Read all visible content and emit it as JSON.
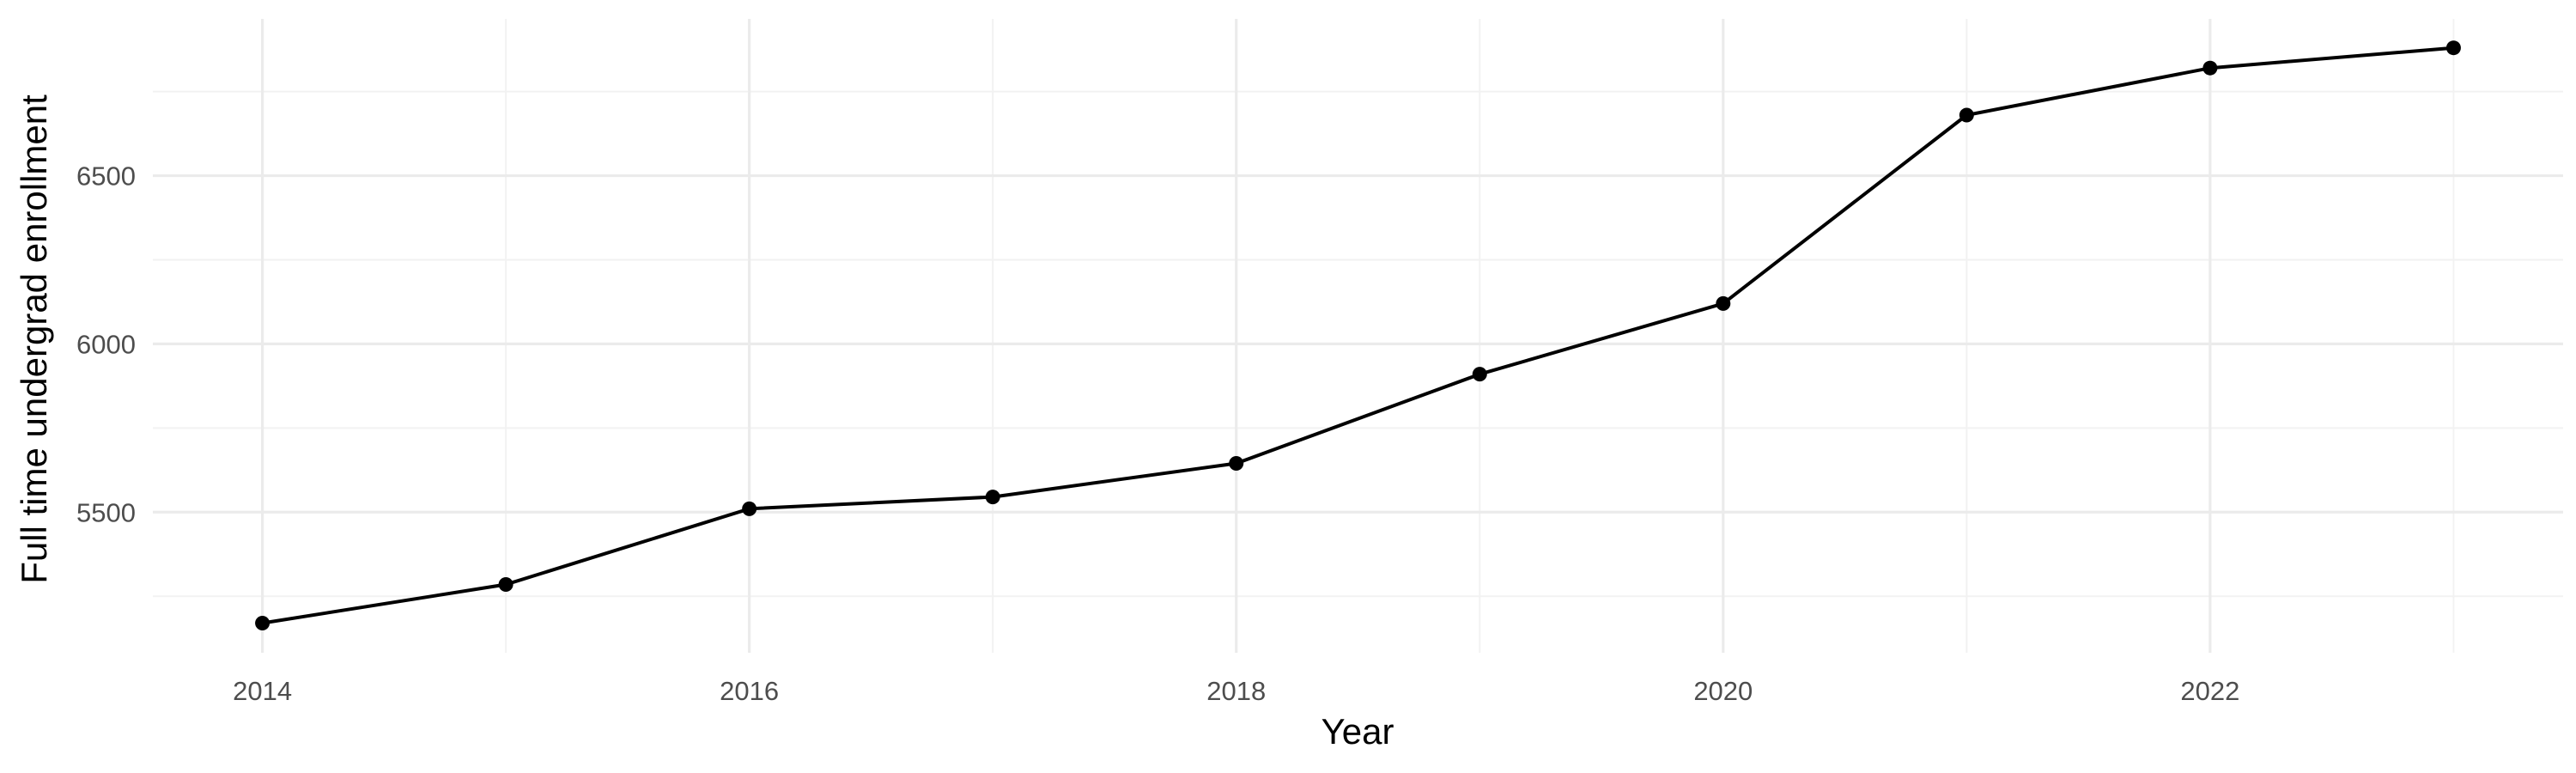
{
  "chart_data": {
    "type": "line",
    "title": "",
    "xlabel": "Year",
    "ylabel": "Full time undergrad enrollment",
    "x": [
      2014,
      2015,
      2016,
      2017,
      2018,
      2019,
      2020,
      2021,
      2022,
      2023
    ],
    "series": [
      {
        "values": [
          5170,
          5285,
          5510,
          5545,
          5645,
          5910,
          6120,
          6680,
          6820,
          6880
        ]
      }
    ],
    "xlim": [
      2013.55,
      2023.45
    ],
    "ylim": [
      5082,
      6966
    ],
    "x_ticks": [
      2014,
      2016,
      2018,
      2020,
      2022
    ],
    "x_tick_labels": [
      "2014",
      "2016",
      "2018",
      "2020",
      "2022"
    ],
    "x_minor_ticks": [
      2015,
      2017,
      2019,
      2021,
      2023
    ],
    "y_ticks": [
      5500,
      6000,
      6500
    ],
    "y_tick_labels": [
      "5500",
      "6000",
      "6500"
    ],
    "y_minor_ticks": [
      5250,
      5750,
      6250,
      6750
    ],
    "grid": true,
    "legend": "none",
    "colors": {
      "line": "#000000",
      "point": "#000000",
      "grid_major": "#ebebeb",
      "grid_minor": "#f2f2f2",
      "tick_text": "#4d4d4d",
      "axis_title": "#000000",
      "background": "#ffffff"
    }
  }
}
